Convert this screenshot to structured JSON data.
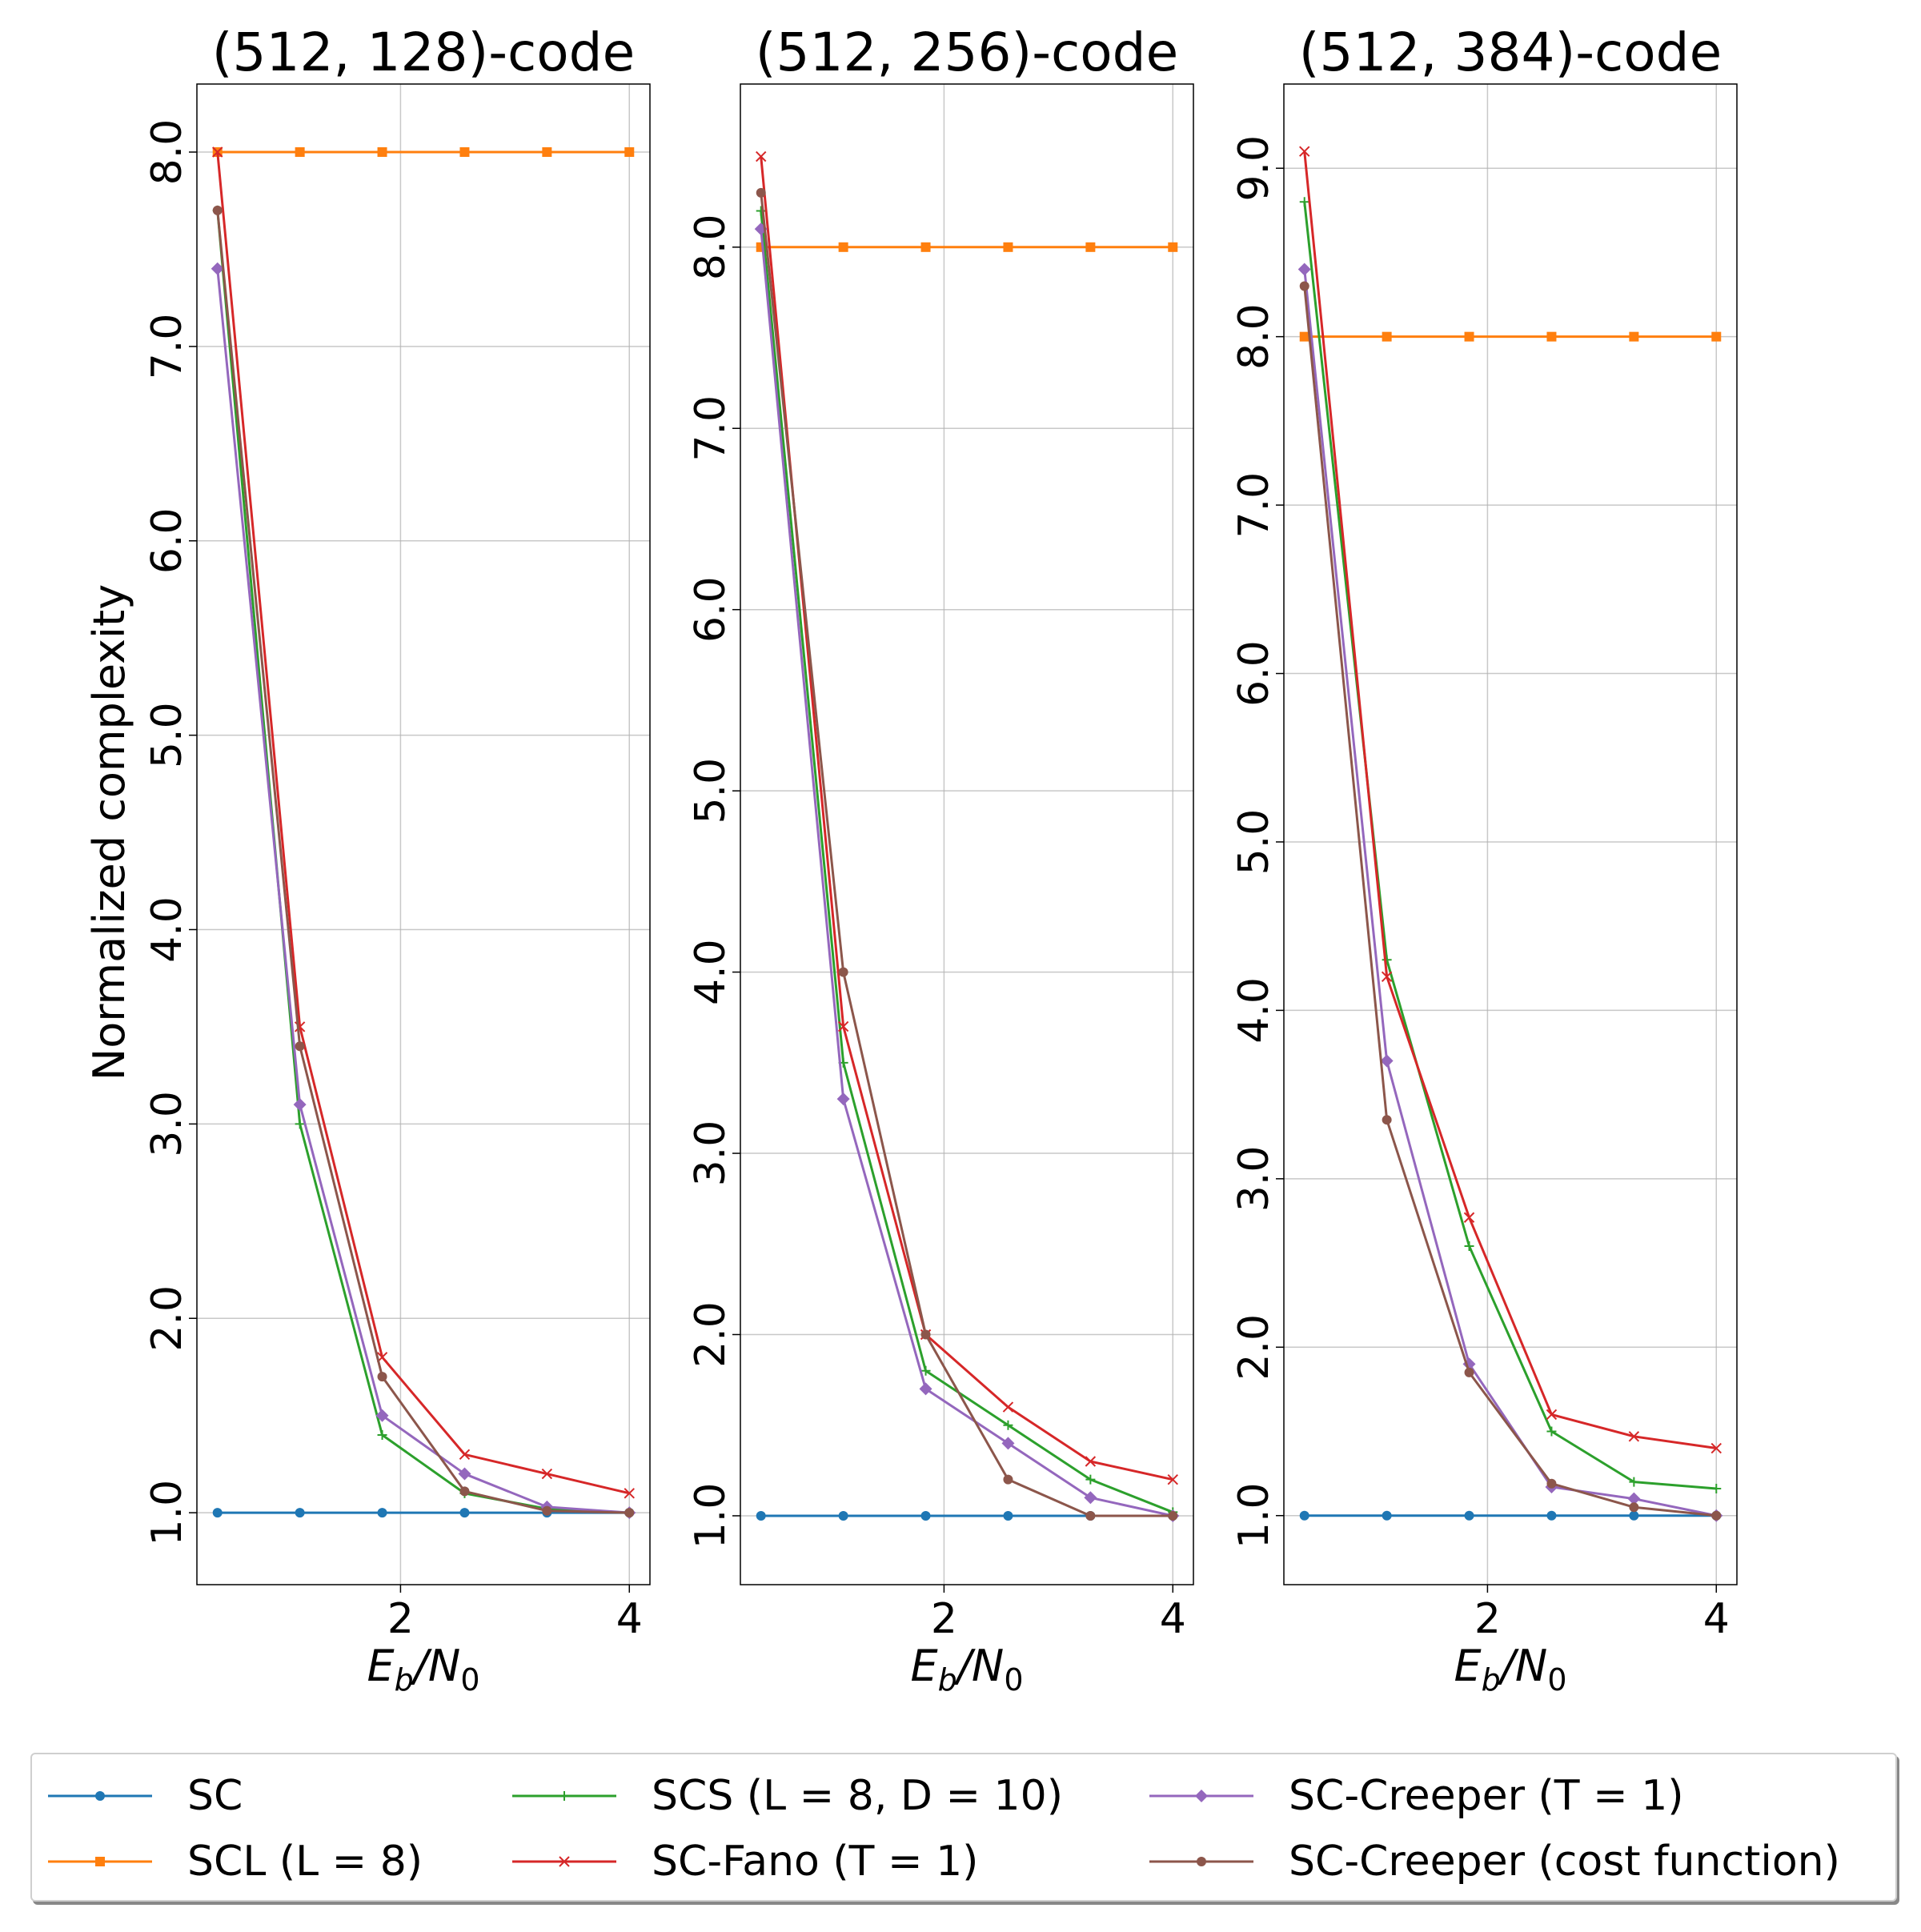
{
  "figure": {
    "ylabel": "Normalized complexity",
    "xlabel_base": "E",
    "xlabel_sub1": "b",
    "xlabel_mid": "/N",
    "xlabel_sub2": "0"
  },
  "legend": [
    {
      "label": "SC",
      "color": "#1f77b4",
      "marker": "circle"
    },
    {
      "label": "SCL (L = 8)",
      "color": "#ff7f0e",
      "marker": "square"
    },
    {
      "label": "SCS (L = 8, D = 10)",
      "color": "#2ca02c",
      "marker": "plus"
    },
    {
      "label": "SC-Fano (T = 1)",
      "color": "#d62728",
      "marker": "x"
    },
    {
      "label": "SC-Creeper (T = 1)",
      "color": "#9467bd",
      "marker": "diamond"
    },
    {
      "label": "SC-Creeper (cost function)",
      "color": "#8c564b",
      "marker": "circle"
    }
  ],
  "chart_data": [
    {
      "type": "line",
      "title": "(512, 128)-code",
      "xlabel": "E_b/N_0",
      "ylabel": "Normalized complexity",
      "x": [
        0.4,
        1.12,
        1.84,
        2.56,
        3.28,
        4.0
      ],
      "xlim": [
        0.22,
        4.18
      ],
      "ylim": [
        0.63,
        8.35
      ],
      "xticks": [
        "2",
        "4"
      ],
      "yticks": [
        "1.0",
        "2.0",
        "3.0",
        "4.0",
        "5.0",
        "6.0",
        "7.0",
        "8.0"
      ],
      "grid": true,
      "series": [
        {
          "name": "SC",
          "values": [
            1.0,
            1.0,
            1.0,
            1.0,
            1.0,
            1.0
          ]
        },
        {
          "name": "SCL (L = 8)",
          "values": [
            8.0,
            8.0,
            8.0,
            8.0,
            8.0,
            8.0
          ]
        },
        {
          "name": "SCS (L = 8, D = 10)",
          "values": [
            7.7,
            3.0,
            1.4,
            1.1,
            1.02,
            1.0
          ]
        },
        {
          "name": "SC-Fano (T = 1)",
          "values": [
            8.0,
            3.5,
            1.8,
            1.3,
            1.2,
            1.1
          ]
        },
        {
          "name": "SC-Creeper (T = 1)",
          "values": [
            7.4,
            3.1,
            1.5,
            1.2,
            1.03,
            1.0
          ]
        },
        {
          "name": "SC-Creeper (cost function)",
          "values": [
            7.7,
            3.4,
            1.7,
            1.11,
            1.01,
            1.0
          ]
        }
      ]
    },
    {
      "type": "line",
      "title": "(512, 256)-code",
      "xlabel": "E_b/N_0",
      "ylabel": "",
      "x": [
        0.4,
        1.12,
        1.84,
        2.56,
        3.28,
        4.0
      ],
      "xlim": [
        0.22,
        4.18
      ],
      "ylim": [
        0.62,
        8.9
      ],
      "xticks": [
        "2",
        "4"
      ],
      "yticks": [
        "1.0",
        "2.0",
        "3.0",
        "4.0",
        "5.0",
        "6.0",
        "7.0",
        "8.0"
      ],
      "grid": true,
      "series": [
        {
          "name": "SC",
          "values": [
            1.0,
            1.0,
            1.0,
            1.0,
            1.0,
            1.0
          ]
        },
        {
          "name": "SCL (L = 8)",
          "values": [
            8.0,
            8.0,
            8.0,
            8.0,
            8.0,
            8.0
          ]
        },
        {
          "name": "SCS (L = 8, D = 10)",
          "values": [
            8.2,
            3.5,
            1.8,
            1.5,
            1.2,
            1.02
          ]
        },
        {
          "name": "SC-Fano (T = 1)",
          "values": [
            8.5,
            3.7,
            2.0,
            1.6,
            1.3,
            1.2
          ]
        },
        {
          "name": "SC-Creeper (T = 1)",
          "values": [
            8.1,
            3.3,
            1.7,
            1.4,
            1.1,
            1.0
          ]
        },
        {
          "name": "SC-Creeper (cost function)",
          "values": [
            8.3,
            4.0,
            2.0,
            1.2,
            1.0,
            1.0
          ]
        }
      ]
    },
    {
      "type": "line",
      "title": "(512, 384)-code",
      "xlabel": "E_b/N_0",
      "ylabel": "",
      "x": [
        0.4,
        1.12,
        1.84,
        2.56,
        3.28,
        4.0
      ],
      "xlim": [
        0.22,
        4.18
      ],
      "ylim": [
        0.59,
        9.5
      ],
      "xticks": [
        "2",
        "4"
      ],
      "yticks": [
        "1.0",
        "2.0",
        "3.0",
        "4.0",
        "5.0",
        "6.0",
        "7.0",
        "8.0",
        "9.0"
      ],
      "grid": true,
      "series": [
        {
          "name": "SC",
          "values": [
            1.0,
            1.0,
            1.0,
            1.0,
            1.0,
            1.0
          ]
        },
        {
          "name": "SCL (L = 8)",
          "values": [
            8.0,
            8.0,
            8.0,
            8.0,
            8.0,
            8.0
          ]
        },
        {
          "name": "SCS (L = 8, D = 10)",
          "values": [
            8.8,
            4.3,
            2.6,
            1.5,
            1.2,
            1.16
          ]
        },
        {
          "name": "SC-Fano (T = 1)",
          "values": [
            9.1,
            4.2,
            2.77,
            1.6,
            1.47,
            1.4
          ]
        },
        {
          "name": "SC-Creeper (T = 1)",
          "values": [
            8.4,
            3.7,
            1.9,
            1.17,
            1.1,
            1.0
          ]
        },
        {
          "name": "SC-Creeper (cost function)",
          "values": [
            8.3,
            3.35,
            1.85,
            1.19,
            1.05,
            1.0
          ]
        }
      ]
    }
  ]
}
